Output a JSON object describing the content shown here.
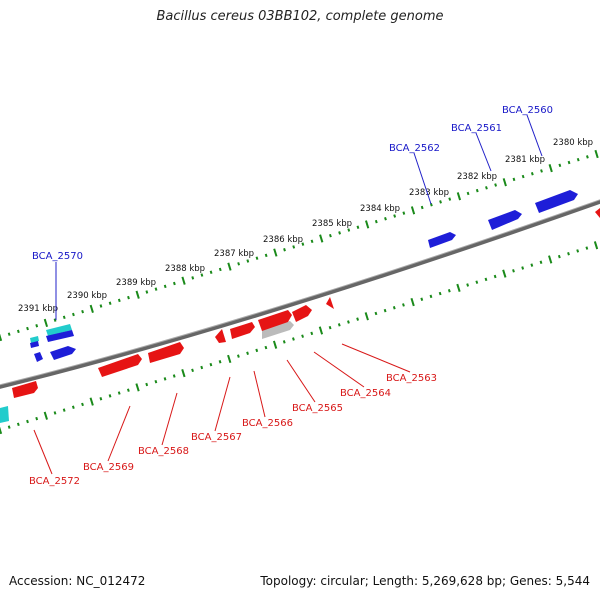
{
  "title": "Bacillus cereus 03BB102, complete genome",
  "accession": "Accession: NC_012472",
  "topology": "Topology: circular; Length: 5,269,628 bp; Genes: 5,544",
  "colors": {
    "forward": "#1e1ed8",
    "reverse": "#e61414",
    "other": "#22cccc",
    "backbone": "#777777",
    "ticks": "#1a8a1a"
  },
  "kbp_labels": [
    "2380 kbp",
    "2381 kbp",
    "2382 kbp",
    "2383 kbp",
    "2384 kbp",
    "2385 kbp",
    "2386 kbp",
    "2387 kbp",
    "2388 kbp",
    "2389 kbp",
    "2390 kbp",
    "2391 kbp"
  ],
  "gene_labels": {
    "forward": [
      "BCA_2560",
      "BCA_2561",
      "BCA_2562",
      "BCA_2570"
    ],
    "reverse": [
      "BCA_2563",
      "BCA_2564",
      "BCA_2565",
      "BCA_2566",
      "BCA_2567",
      "BCA_2568",
      "BCA_2569",
      "BCA_2572"
    ]
  }
}
